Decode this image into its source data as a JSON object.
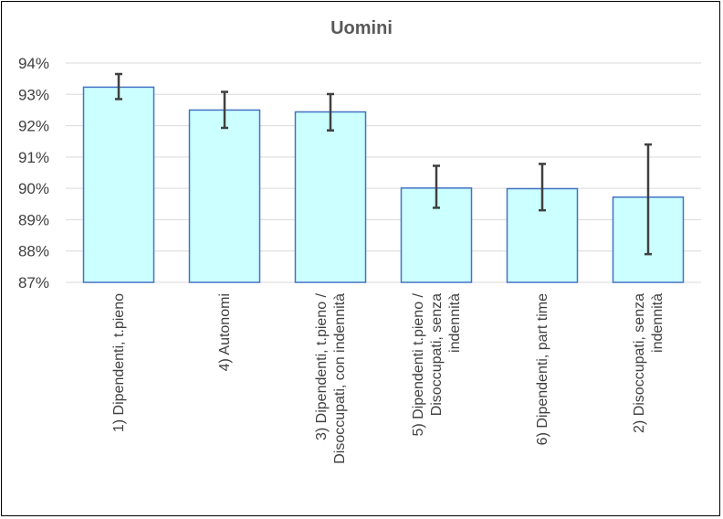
{
  "chart_data": {
    "type": "bar",
    "title": "Uomini",
    "categories": [
      [
        "1) Dipendenti, t.pieno"
      ],
      [
        "4) Autonomi"
      ],
      [
        "3) Dipendenti, t.pieno /",
        "Disoccupati, con indennità"
      ],
      [
        "5) Dipendenti t.pieno /",
        "Disoccupati, senza",
        "indennità"
      ],
      [
        "6) Dipendenti, part time"
      ],
      [
        "2) Disoccupati, senza",
        "indennità"
      ]
    ],
    "values": [
      93.23,
      92.5,
      92.44,
      90.01,
      89.99,
      89.72
    ],
    "error_low": [
      92.85,
      91.93,
      91.85,
      89.38,
      89.3,
      87.9
    ],
    "error_high": [
      93.65,
      93.08,
      93.01,
      90.72,
      90.78,
      91.4
    ],
    "ylim": [
      87,
      94
    ],
    "yticks": [
      "87%",
      "88%",
      "89%",
      "90%",
      "91%",
      "92%",
      "93%",
      "94%"
    ],
    "grid": true,
    "colors": {
      "bar_fill": "#ccffff",
      "bar_stroke": "#4472c4",
      "grid": "#d9d9d9",
      "error": "#404040"
    }
  }
}
